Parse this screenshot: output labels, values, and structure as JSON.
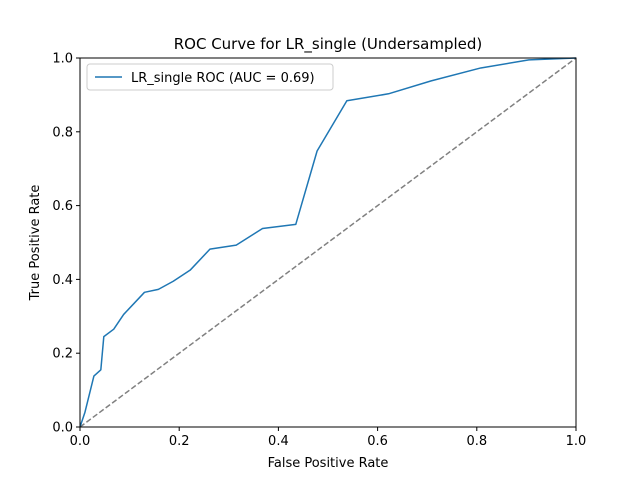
{
  "chart_data": {
    "type": "line",
    "title": "ROC Curve for LR_single (Undersampled)",
    "xlabel": "False Positive Rate",
    "ylabel": "True Positive Rate",
    "xlim": [
      0.0,
      1.0
    ],
    "ylim": [
      0.0,
      1.0
    ],
    "xticks": [
      "0.0",
      "0.2",
      "0.4",
      "0.6",
      "0.8",
      "1.0"
    ],
    "yticks": [
      "0.0",
      "0.2",
      "0.4",
      "0.6",
      "0.8",
      "1.0"
    ],
    "grid": false,
    "legend_position": "top-left",
    "series": [
      {
        "name": "LR_single ROC (AUC = 0.69)",
        "color": "#1f77b4",
        "style": "solid",
        "x": [
          0.0,
          0.01,
          0.028,
          0.042,
          0.048,
          0.068,
          0.088,
          0.13,
          0.158,
          0.188,
          0.222,
          0.262,
          0.315,
          0.368,
          0.435,
          0.478,
          0.538,
          0.622,
          0.708,
          0.808,
          0.905,
          1.0
        ],
        "y": [
          0.0,
          0.04,
          0.138,
          0.155,
          0.245,
          0.265,
          0.305,
          0.365,
          0.373,
          0.395,
          0.425,
          0.482,
          0.493,
          0.538,
          0.549,
          0.748,
          0.884,
          0.903,
          0.938,
          0.973,
          0.995,
          1.0
        ]
      },
      {
        "name": "",
        "color": "#808080",
        "style": "dashed",
        "x": [
          0.0,
          1.0
        ],
        "y": [
          0.0,
          1.0
        ]
      }
    ]
  }
}
